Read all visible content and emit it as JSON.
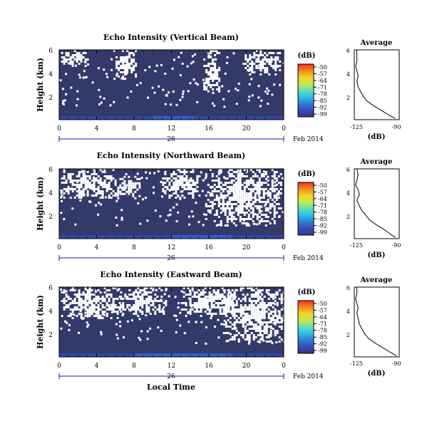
{
  "colors": {
    "background_echo": "#333a69",
    "no_data": "#ffffff",
    "axis": "#000000",
    "date_bar": "#1a1aa0"
  },
  "colorbar": {
    "unit": "(dB)",
    "ticks": [
      "-50",
      "-57",
      "-64",
      "-71",
      "-78",
      "-85",
      "-92",
      "-99"
    ],
    "gradient": [
      "#f03020",
      "#f28a1e",
      "#f2d52a",
      "#c9e84a",
      "#5ee0b8",
      "#2fbde6",
      "#2d7ed6",
      "#3a4ab8",
      "#353a78"
    ]
  },
  "shared_x": {
    "ticks": [
      "0",
      "4",
      "8",
      "12",
      "16",
      "20",
      "0"
    ],
    "day_label": "26",
    "month_label": "Feb 2014",
    "xlabel": "Local Time"
  },
  "panels": [
    {
      "title": "Echo Intensity (Vertical Beam)",
      "ylabel": "Height (km)",
      "yticks": [
        "6",
        "4",
        "2"
      ]
    },
    {
      "title": "Echo Intensity (Northward Beam)",
      "ylabel": "Height (km)",
      "yticks": [
        "6",
        "4",
        "2"
      ]
    },
    {
      "title": "Echo Intensity (Eastward Beam)",
      "ylabel": "Height (km)",
      "yticks": [
        "6",
        "4",
        "2"
      ]
    }
  ],
  "averages": [
    {
      "title": "Average",
      "xticks": [
        "-125",
        "-90"
      ],
      "yticks": [
        "6",
        "4",
        "2"
      ],
      "xlabel": "(dB)"
    },
    {
      "title": "Average",
      "xticks": [
        "-125",
        "-90"
      ],
      "yticks": [
        "6",
        "4",
        "2"
      ],
      "xlabel": "(dB)"
    },
    {
      "title": "Average",
      "xticks": [
        "-125",
        "-90"
      ],
      "yticks": [
        "6",
        "4",
        "2"
      ],
      "xlabel": "(dB)"
    }
  ],
  "chart_data": [
    {
      "type": "heatmap",
      "title": "Echo Intensity (Vertical Beam)",
      "xlabel": "Local Time",
      "ylabel": "Height (km)",
      "xlim": [
        0,
        24
      ],
      "ylim": [
        0,
        6
      ],
      "zlim": [
        -99,
        -50
      ],
      "no_data_regions": [
        {
          "t": [
            0.2,
            3.0
          ],
          "h": [
            4.6,
            6.0
          ]
        },
        {
          "t": [
            5.8,
            8.2
          ],
          "h": [
            3.6,
            6.0
          ]
        },
        {
          "t": [
            15.4,
            17.2
          ],
          "h": [
            2.4,
            6.0
          ]
        },
        {
          "t": [
            19.6,
            23.6
          ],
          "h": [
            3.8,
            6.0
          ]
        }
      ],
      "low_level_echo": {
        "h": [
          0.0,
          0.3
        ],
        "peak_t": [
          10,
          14
        ]
      }
    },
    {
      "type": "line",
      "title": "Average",
      "xlabel": "(dB)",
      "xlim": [
        -125,
        -90
      ],
      "ylim": [
        0,
        6
      ],
      "x": [
        -123,
        -123,
        -123,
        -124,
        -123,
        -122,
        -123,
        -122,
        -120,
        -118,
        -115,
        -110,
        -104,
        -98,
        -93
      ],
      "y": [
        6.0,
        5.5,
        5.0,
        4.6,
        4.2,
        3.8,
        3.3,
        2.8,
        2.4,
        2.0,
        1.6,
        1.2,
        0.8,
        0.4,
        0.1
      ]
    },
    {
      "type": "heatmap",
      "title": "Echo Intensity (Northward Beam)",
      "xlabel": "Local Time",
      "ylabel": "Height (km)",
      "xlim": [
        0,
        24
      ],
      "ylim": [
        0,
        6
      ],
      "zlim": [
        -99,
        -50
      ],
      "no_data_regions": [
        {
          "t": [
            0.2,
            6.0
          ],
          "h": [
            3.6,
            6.0
          ]
        },
        {
          "t": [
            6.2,
            8.6
          ],
          "h": [
            3.4,
            5.4
          ]
        },
        {
          "t": [
            11.0,
            15.0
          ],
          "h": [
            3.6,
            6.0
          ]
        },
        {
          "t": [
            15.6,
            23.8
          ],
          "h": [
            1.2,
            6.0
          ]
        }
      ],
      "low_level_echo": {
        "h": [
          0.0,
          0.3
        ],
        "peak_t": [
          12,
          18
        ]
      }
    },
    {
      "type": "line",
      "title": "Average",
      "xlabel": "(dB)",
      "xlim": [
        -125,
        -90
      ],
      "ylim": [
        0,
        6
      ],
      "x": [
        -123,
        -122,
        -123,
        -124,
        -122,
        -121,
        -123,
        -121,
        -119,
        -116,
        -113,
        -108,
        -102,
        -97,
        -93
      ],
      "y": [
        6.0,
        5.5,
        5.0,
        4.6,
        4.2,
        3.8,
        3.3,
        2.8,
        2.4,
        2.0,
        1.6,
        1.2,
        0.8,
        0.4,
        0.1
      ]
    },
    {
      "type": "heatmap",
      "title": "Echo Intensity (Eastward Beam)",
      "xlabel": "Local Time",
      "ylabel": "Height (km)",
      "xlim": [
        0,
        24
      ],
      "ylim": [
        0,
        6
      ],
      "zlim": [
        -99,
        -50
      ],
      "no_data_regions": [
        {
          "t": [
            0.2,
            6.5
          ],
          "h": [
            3.4,
            6.0
          ]
        },
        {
          "t": [
            6.5,
            11.5
          ],
          "h": [
            3.6,
            6.0
          ]
        },
        {
          "t": [
            13.0,
            18.5
          ],
          "h": [
            3.6,
            6.0
          ]
        },
        {
          "t": [
            17.5,
            24.0
          ],
          "h": [
            1.4,
            6.0
          ]
        }
      ],
      "low_level_echo": {
        "h": [
          0.0,
          0.3
        ],
        "peak_t": [
          8,
          18
        ]
      }
    },
    {
      "type": "line",
      "title": "Average",
      "xlabel": "(dB)",
      "xlim": [
        -125,
        -90
      ],
      "ylim": [
        0,
        6
      ],
      "x": [
        -123,
        -123,
        -124,
        -123,
        -122,
        -123,
        -122,
        -121,
        -119,
        -117,
        -114,
        -109,
        -103,
        -97,
        -92
      ],
      "y": [
        6.0,
        5.5,
        5.0,
        4.6,
        4.2,
        3.8,
        3.3,
        2.8,
        2.4,
        2.0,
        1.6,
        1.2,
        0.8,
        0.4,
        0.1
      ]
    }
  ]
}
